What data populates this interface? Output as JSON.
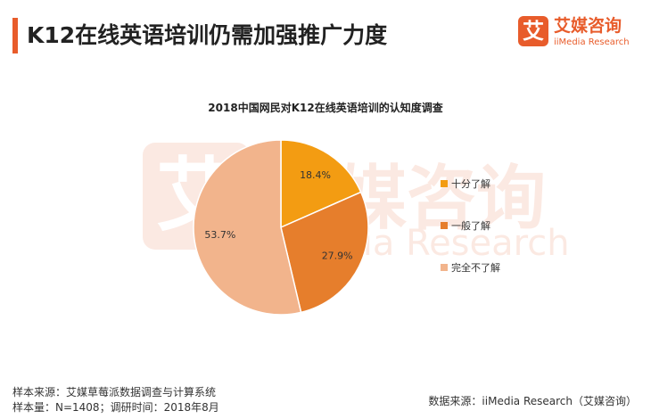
{
  "header": {
    "title": "K12在线英语培训仍需加强推广力度",
    "logo_mark": "艾",
    "logo_cn": "艾媒咨询",
    "logo_en": "iiMedia Research",
    "accent_color": "#e85c2b"
  },
  "chart_data": {
    "type": "pie",
    "title": "2018中国网民对K12在线英语培训的认知度调查",
    "slices": [
      {
        "label": "十分了解",
        "value": 18.4,
        "value_label": "18.4%",
        "color": "#f39c12"
      },
      {
        "label": "一般了解",
        "value": 27.9,
        "value_label": "27.9%",
        "color": "#e67e2c"
      },
      {
        "label": "完全不了解",
        "value": 53.7,
        "value_label": "53.7%",
        "color": "#f2b48c"
      }
    ],
    "start": "12 o'clock",
    "direction": "clockwise",
    "legend_position": "right"
  },
  "footer": {
    "sample_source": "样本来源：艾媒草莓派数据调查与计算系统",
    "sample_size": "样本量：N=1408；调研时间：2018年8月",
    "data_source": "数据来源：iiMedia Research（艾媒咨询）"
  }
}
